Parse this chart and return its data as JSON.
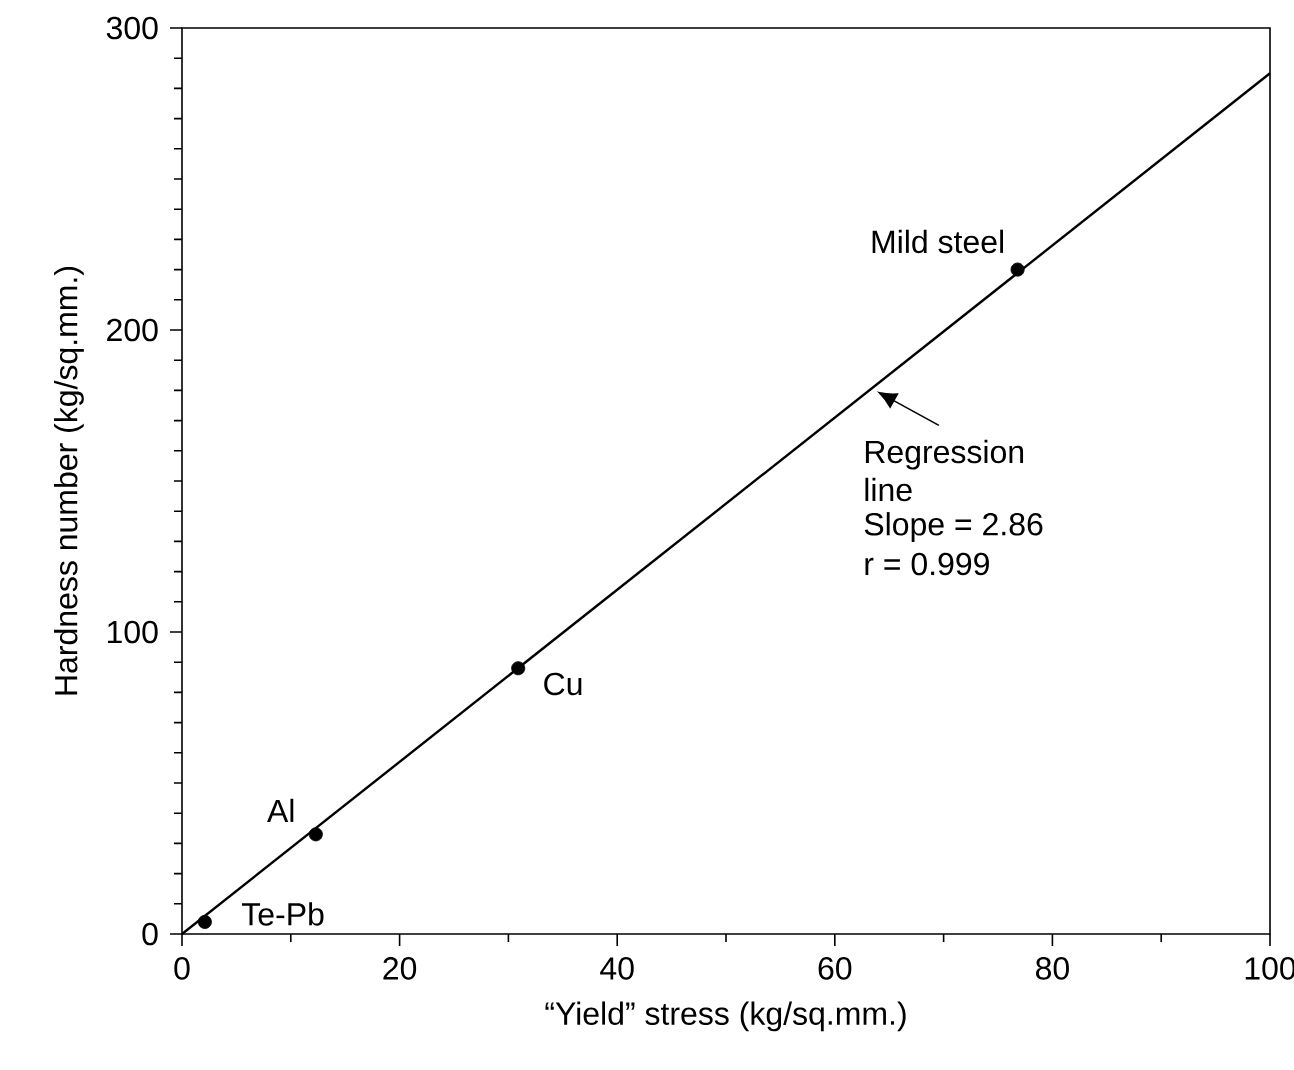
{
  "chart_data": {
    "type": "scatter",
    "xlabel": "“Yield” stress (kg/sq.mm.)",
    "ylabel": "Hardness number (kg/sq.mm.)",
    "xlim": [
      0,
      100
    ],
    "ylim": [
      0,
      300
    ],
    "xticks": [
      0,
      20,
      40,
      60,
      80,
      100
    ],
    "yticks": [
      0,
      100,
      200,
      300
    ],
    "series": [
      {
        "color": "#000000",
        "marker": "circle",
        "x": [
          2.1,
          12.3,
          30.9,
          76.8
        ],
        "values": [
          4,
          33,
          88,
          220
        ]
      },
      {
        "type": "line",
        "color": "#000000",
        "x": [
          0,
          100
        ],
        "values": [
          0,
          285
        ],
        "line_style": "solid",
        "marker": "none"
      }
    ],
    "annotations": [
      {
        "text": "Te-Pb",
        "x": 2.1,
        "y": 4
      },
      {
        "text": "Al",
        "x": 12.3,
        "y": 33
      },
      {
        "text": "Cu",
        "x": 30.9,
        "y": 88
      },
      {
        "text": "Mild steel",
        "x": 76.8,
        "y": 220
      },
      {
        "text": "Regression line",
        "x": 63.5,
        "y": 181
      },
      "Slope = 2.86",
      "r = 0.999"
    ]
  }
}
